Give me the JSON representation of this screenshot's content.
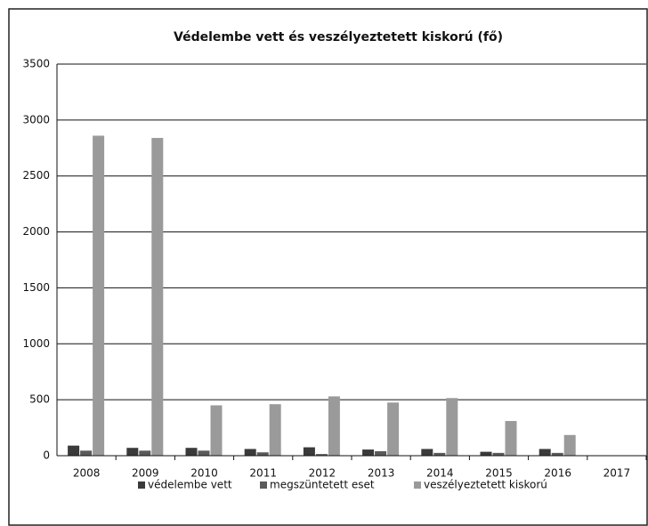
{
  "chart_data": {
    "type": "bar",
    "title": "Védelembe vett és veszélyeztetett kiskorú (fő)",
    "categories": [
      "2008",
      "2009",
      "2010",
      "2011",
      "2012",
      "2013",
      "2014",
      "2015",
      "2016",
      "2017"
    ],
    "series": [
      {
        "name": "védelembe vett",
        "color": "#3a3a3a",
        "values": [
          90,
          70,
          70,
          60,
          75,
          55,
          60,
          35,
          60,
          null
        ]
      },
      {
        "name": "megszüntetett eset",
        "color": "#5a5a5a",
        "values": [
          45,
          45,
          45,
          30,
          15,
          40,
          25,
          25,
          25,
          null
        ]
      },
      {
        "name": "veszélyeztetett kiskorú",
        "color": "#9a9a9a",
        "values": [
          2860,
          2840,
          450,
          460,
          530,
          475,
          515,
          310,
          185,
          null
        ]
      }
    ],
    "ylim": [
      0,
      3500
    ],
    "yticks": [
      0,
      500,
      1000,
      1500,
      2000,
      2500,
      3000,
      3500
    ],
    "grid": true,
    "legend": "bottom"
  }
}
